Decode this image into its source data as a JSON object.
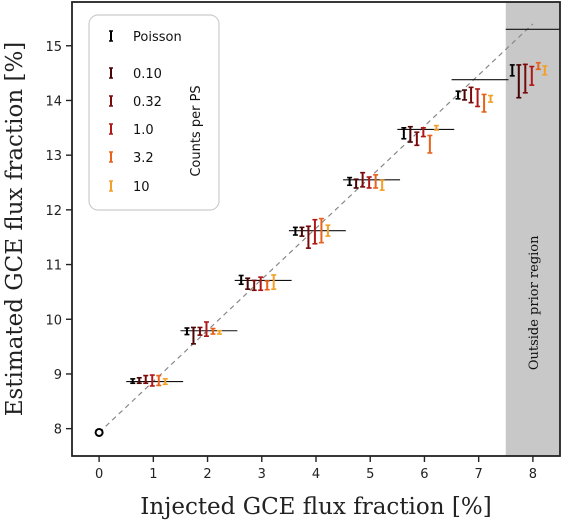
{
  "chart_data": {
    "type": "scatter",
    "title": "",
    "xlabel": "Injected GCE flux fraction [%]",
    "ylabel": "Estimated GCE flux fraction [%]",
    "xlim": [
      -0.5,
      8.5
    ],
    "ylim": [
      7.5,
      15.8
    ],
    "x_ticks": [
      "0",
      "1",
      "2",
      "3",
      "4",
      "5",
      "6",
      "7",
      "8"
    ],
    "y_ticks": [
      "8",
      "9",
      "10",
      "11",
      "12",
      "13",
      "14",
      "15"
    ],
    "grid": false,
    "legend_position": "top-left",
    "legend_side_label": "Counts per PS",
    "shaded_region": {
      "x_from": 7.5,
      "x_to": 8.5,
      "label": "Outside prior region",
      "color": "#c8c8c8"
    },
    "diagonal": {
      "from": [
        0,
        7.93
      ],
      "to": [
        8,
        15.4
      ],
      "style": "dashed"
    },
    "origin_marker": {
      "x": 0,
      "y": 7.93
    },
    "true_values": [
      {
        "x_from": 0.5,
        "x_to": 1.55,
        "y": 8.86
      },
      {
        "x_from": 1.5,
        "x_to": 2.55,
        "y": 9.79
      },
      {
        "x_from": 2.5,
        "x_to": 3.55,
        "y": 10.71
      },
      {
        "x_from": 3.5,
        "x_to": 4.55,
        "y": 11.62
      },
      {
        "x_from": 4.5,
        "x_to": 5.55,
        "y": 12.55
      },
      {
        "x_from": 5.5,
        "x_to": 6.55,
        "y": 13.47
      },
      {
        "x_from": 6.5,
        "x_to": 7.55,
        "y": 14.38
      },
      {
        "x_from": 7.5,
        "x_to": 8.5,
        "y": 15.3
      }
    ],
    "series": [
      {
        "name": "Poisson",
        "color": "#000000",
        "x": [
          0.62,
          1.62,
          2.62,
          3.62,
          4.62,
          5.62,
          6.62,
          7.62
        ],
        "y": [
          8.87,
          9.78,
          10.72,
          11.61,
          12.52,
          13.4,
          14.1,
          14.55
        ],
        "yerr": [
          0.04,
          0.06,
          0.08,
          0.07,
          0.07,
          0.1,
          0.07,
          0.1
        ]
      },
      {
        "name": "0.10",
        "color": "#4a0404",
        "x": [
          0.74,
          1.74,
          2.74,
          3.74,
          4.74,
          5.74,
          6.74,
          7.74
        ],
        "y": [
          8.88,
          9.7,
          10.65,
          11.6,
          12.48,
          13.38,
          14.1,
          14.35
        ],
        "yerr": [
          0.05,
          0.15,
          0.1,
          0.08,
          0.08,
          0.14,
          0.09,
          0.3
        ]
      },
      {
        "name": "0.32",
        "color": "#7a0a0a",
        "x": [
          0.86,
          1.86,
          2.86,
          3.86,
          4.86,
          5.86,
          6.86,
          7.86
        ],
        "y": [
          8.9,
          9.78,
          10.62,
          11.5,
          12.55,
          13.3,
          14.1,
          14.4
        ],
        "yerr": [
          0.07,
          0.07,
          0.09,
          0.2,
          0.13,
          0.12,
          0.14,
          0.26
        ]
      },
      {
        "name": "1.0",
        "color": "#b01818",
        "x": [
          0.98,
          1.98,
          2.98,
          3.98,
          4.98,
          5.98,
          6.98,
          7.98
        ],
        "y": [
          8.88,
          9.82,
          10.65,
          11.6,
          12.5,
          13.42,
          14.05,
          14.45
        ],
        "yerr": [
          0.1,
          0.13,
          0.12,
          0.22,
          0.1,
          0.08,
          0.16,
          0.17
        ]
      },
      {
        "name": "3.2",
        "color": "#e8621c",
        "x": [
          1.1,
          2.1,
          3.1,
          4.1,
          5.1,
          6.1,
          7.1,
          8.1
        ],
        "y": [
          8.88,
          9.78,
          10.62,
          11.62,
          12.52,
          13.2,
          13.95,
          14.63
        ],
        "yerr": [
          0.09,
          0.05,
          0.08,
          0.22,
          0.12,
          0.16,
          0.16,
          0.06
        ]
      },
      {
        "name": "10",
        "color": "#f2a028",
        "x": [
          1.22,
          2.22,
          3.22,
          4.22,
          5.22,
          6.22,
          7.22,
          8.22
        ],
        "y": [
          8.86,
          9.76,
          10.68,
          11.62,
          12.45,
          13.5,
          14.03,
          14.55
        ],
        "yerr": [
          0.05,
          0.03,
          0.13,
          0.1,
          0.09,
          0.04,
          0.06,
          0.08
        ]
      }
    ]
  }
}
